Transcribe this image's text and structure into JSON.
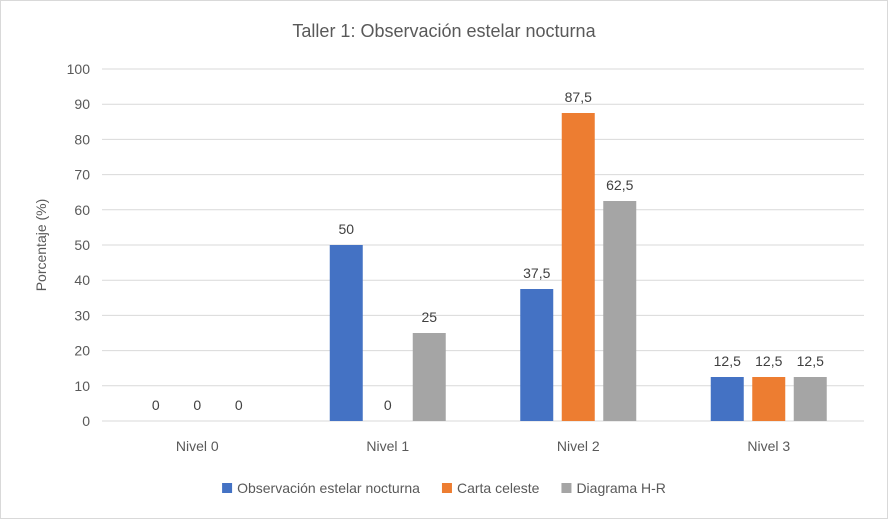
{
  "chart_data": {
    "type": "bar",
    "title": "Taller 1: Observación estelar nocturna",
    "ylabel": "Porcentaje (%)",
    "xlabel": "",
    "ylim": [
      0,
      100
    ],
    "yticks": [
      0,
      10,
      20,
      30,
      40,
      50,
      60,
      70,
      80,
      90,
      100
    ],
    "categories": [
      "Nivel 0",
      "Nivel 1",
      "Nivel 2",
      "Nivel 3"
    ],
    "series": [
      {
        "name": "Observación estelar nocturna",
        "color": "#4472c4",
        "values": [
          0,
          50,
          37.5,
          12.5
        ],
        "labels": [
          "0",
          "50",
          "37,5",
          "12,5"
        ]
      },
      {
        "name": "Carta celeste",
        "color": "#ed7d31",
        "values": [
          0,
          0,
          87.5,
          12.5
        ],
        "labels": [
          "0",
          "0",
          "87,5",
          "12,5"
        ]
      },
      {
        "name": "Diagrama H-R",
        "color": "#a5a5a5",
        "values": [
          0,
          25,
          62.5,
          12.5
        ],
        "labels": [
          "0",
          "25",
          "62,5",
          "12,5"
        ]
      }
    ],
    "grid": true,
    "legend_position": "bottom"
  }
}
